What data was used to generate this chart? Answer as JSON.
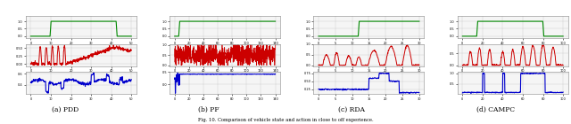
{
  "fig_width": 6.4,
  "fig_height": 1.4,
  "dpi": 100,
  "subtitles": [
    "(a) PDD",
    "(b) PF",
    "(c) RDA",
    "(d) CAMPC"
  ],
  "caption": "Fig. 10. Comparison of vehicle state and action in close to off experience.",
  "panel_bg": "#f5f5f5",
  "green_color": "#008800",
  "red_color": "#cc0000",
  "blue_color": "#0000cc",
  "grid_color": "#bbbbbb"
}
